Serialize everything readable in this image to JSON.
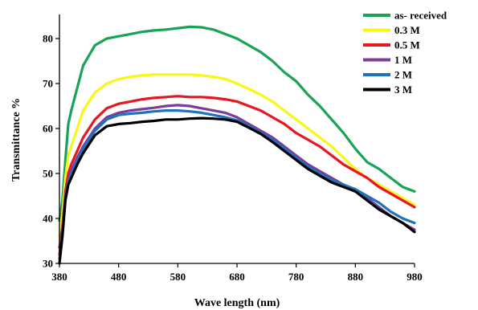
{
  "chart_data": {
    "type": "line",
    "title": "",
    "xlabel": "Wave length (nm)",
    "ylabel": "Transmittance %",
    "xlim": [
      380,
      980
    ],
    "ylim": [
      30,
      85
    ],
    "xticks": [
      380,
      480,
      580,
      680,
      780,
      880,
      980
    ],
    "yticks": [
      30,
      40,
      50,
      60,
      70,
      80
    ],
    "grid": false,
    "legend_position": "top-right",
    "series": [
      {
        "name": "as- received",
        "color": "#19a356",
        "x": [
          380,
          385,
          390,
          395,
          400,
          410,
          420,
          440,
          460,
          480,
          500,
          520,
          540,
          560,
          580,
          600,
          620,
          640,
          660,
          680,
          700,
          720,
          740,
          760,
          780,
          800,
          820,
          840,
          860,
          880,
          900,
          920,
          940,
          960,
          980
        ],
        "y": [
          39.5,
          44,
          53,
          61,
          64,
          69,
          74,
          78.5,
          80,
          80.5,
          81,
          81.5,
          81.8,
          82,
          82.3,
          82.6,
          82.5,
          82,
          81,
          80,
          78.5,
          77,
          75,
          72.5,
          70.5,
          67.5,
          65,
          62,
          59,
          55.5,
          52.5,
          51,
          49,
          47,
          46
        ]
      },
      {
        "name": "0.3 M",
        "color": "#f7f71a",
        "x": [
          380,
          385,
          390,
          395,
          400,
          410,
          420,
          440,
          460,
          480,
          500,
          520,
          540,
          560,
          580,
          600,
          620,
          640,
          660,
          680,
          700,
          720,
          740,
          760,
          780,
          800,
          820,
          840,
          860,
          880,
          900,
          920,
          940,
          960,
          980
        ],
        "y": [
          36,
          41,
          49,
          54,
          56,
          60,
          64,
          68,
          70,
          71,
          71.5,
          71.8,
          72,
          72,
          72,
          72,
          71.8,
          71.5,
          71,
          70,
          68.8,
          67.5,
          66,
          64,
          62,
          60,
          58,
          56,
          53.5,
          51,
          49,
          47.5,
          46,
          44.5,
          43
        ]
      },
      {
        "name": "0.5 M",
        "color": "#e8161e",
        "x": [
          380,
          385,
          390,
          395,
          400,
          410,
          420,
          440,
          460,
          480,
          500,
          520,
          540,
          560,
          580,
          600,
          620,
          640,
          660,
          680,
          700,
          720,
          740,
          760,
          780,
          800,
          820,
          840,
          860,
          880,
          900,
          920,
          940,
          960,
          980
        ],
        "y": [
          33.5,
          38,
          46,
          50,
          52,
          55,
          58,
          62,
          64.5,
          65.5,
          66,
          66.5,
          66.8,
          67,
          67.2,
          67,
          67,
          66.8,
          66.5,
          66,
          65,
          64,
          62.5,
          61,
          59,
          57.5,
          56,
          54,
          52,
          50.5,
          49,
          47,
          45.5,
          44,
          42.5
        ]
      },
      {
        "name": "1 M",
        "color": "#7a3d9b",
        "x": [
          380,
          385,
          390,
          395,
          400,
          410,
          420,
          440,
          460,
          480,
          500,
          520,
          540,
          560,
          580,
          600,
          620,
          640,
          660,
          680,
          700,
          720,
          740,
          760,
          780,
          800,
          820,
          840,
          860,
          880,
          900,
          920,
          940,
          960,
          980
        ],
        "y": [
          32,
          37,
          45,
          48.5,
          50.5,
          53.5,
          56,
          60,
          62.5,
          63.5,
          64,
          64.3,
          64.6,
          65,
          65.2,
          65,
          64.5,
          64,
          63.5,
          62.5,
          61,
          59.5,
          58,
          56,
          54,
          52,
          50.5,
          49,
          47.5,
          46,
          44.5,
          42.5,
          40.5,
          39,
          37.5
        ]
      },
      {
        "name": "2 M",
        "color": "#1d73be",
        "x": [
          380,
          385,
          390,
          395,
          400,
          410,
          420,
          440,
          460,
          480,
          500,
          520,
          540,
          560,
          580,
          600,
          620,
          640,
          660,
          680,
          700,
          720,
          740,
          760,
          780,
          800,
          820,
          840,
          860,
          880,
          900,
          920,
          940,
          960,
          980
        ],
        "y": [
          31,
          36.5,
          44.5,
          48,
          50,
          53,
          55.5,
          59.5,
          62,
          63,
          63.3,
          63.5,
          63.8,
          64,
          64,
          63.8,
          63.5,
          63,
          62.5,
          61.8,
          60.5,
          59,
          57.5,
          55.5,
          53.5,
          51.5,
          50,
          48.5,
          47.5,
          46.5,
          45,
          43.5,
          41.5,
          40,
          39
        ]
      },
      {
        "name": "3 M",
        "color": "#000000",
        "x": [
          380,
          385,
          390,
          395,
          400,
          410,
          420,
          440,
          460,
          480,
          500,
          520,
          540,
          560,
          580,
          600,
          620,
          640,
          660,
          680,
          700,
          720,
          740,
          760,
          780,
          800,
          820,
          840,
          860,
          880,
          900,
          920,
          940,
          960,
          980
        ],
        "y": [
          30,
          36,
          44,
          47.5,
          49,
          52,
          54.5,
          58.5,
          60.5,
          61,
          61.2,
          61.5,
          61.7,
          62,
          62,
          62.2,
          62.3,
          62.2,
          62,
          61.5,
          60.2,
          58.8,
          57,
          55,
          53,
          51,
          49.5,
          48,
          47,
          46,
          44,
          42,
          40.5,
          39,
          37
        ]
      }
    ]
  }
}
